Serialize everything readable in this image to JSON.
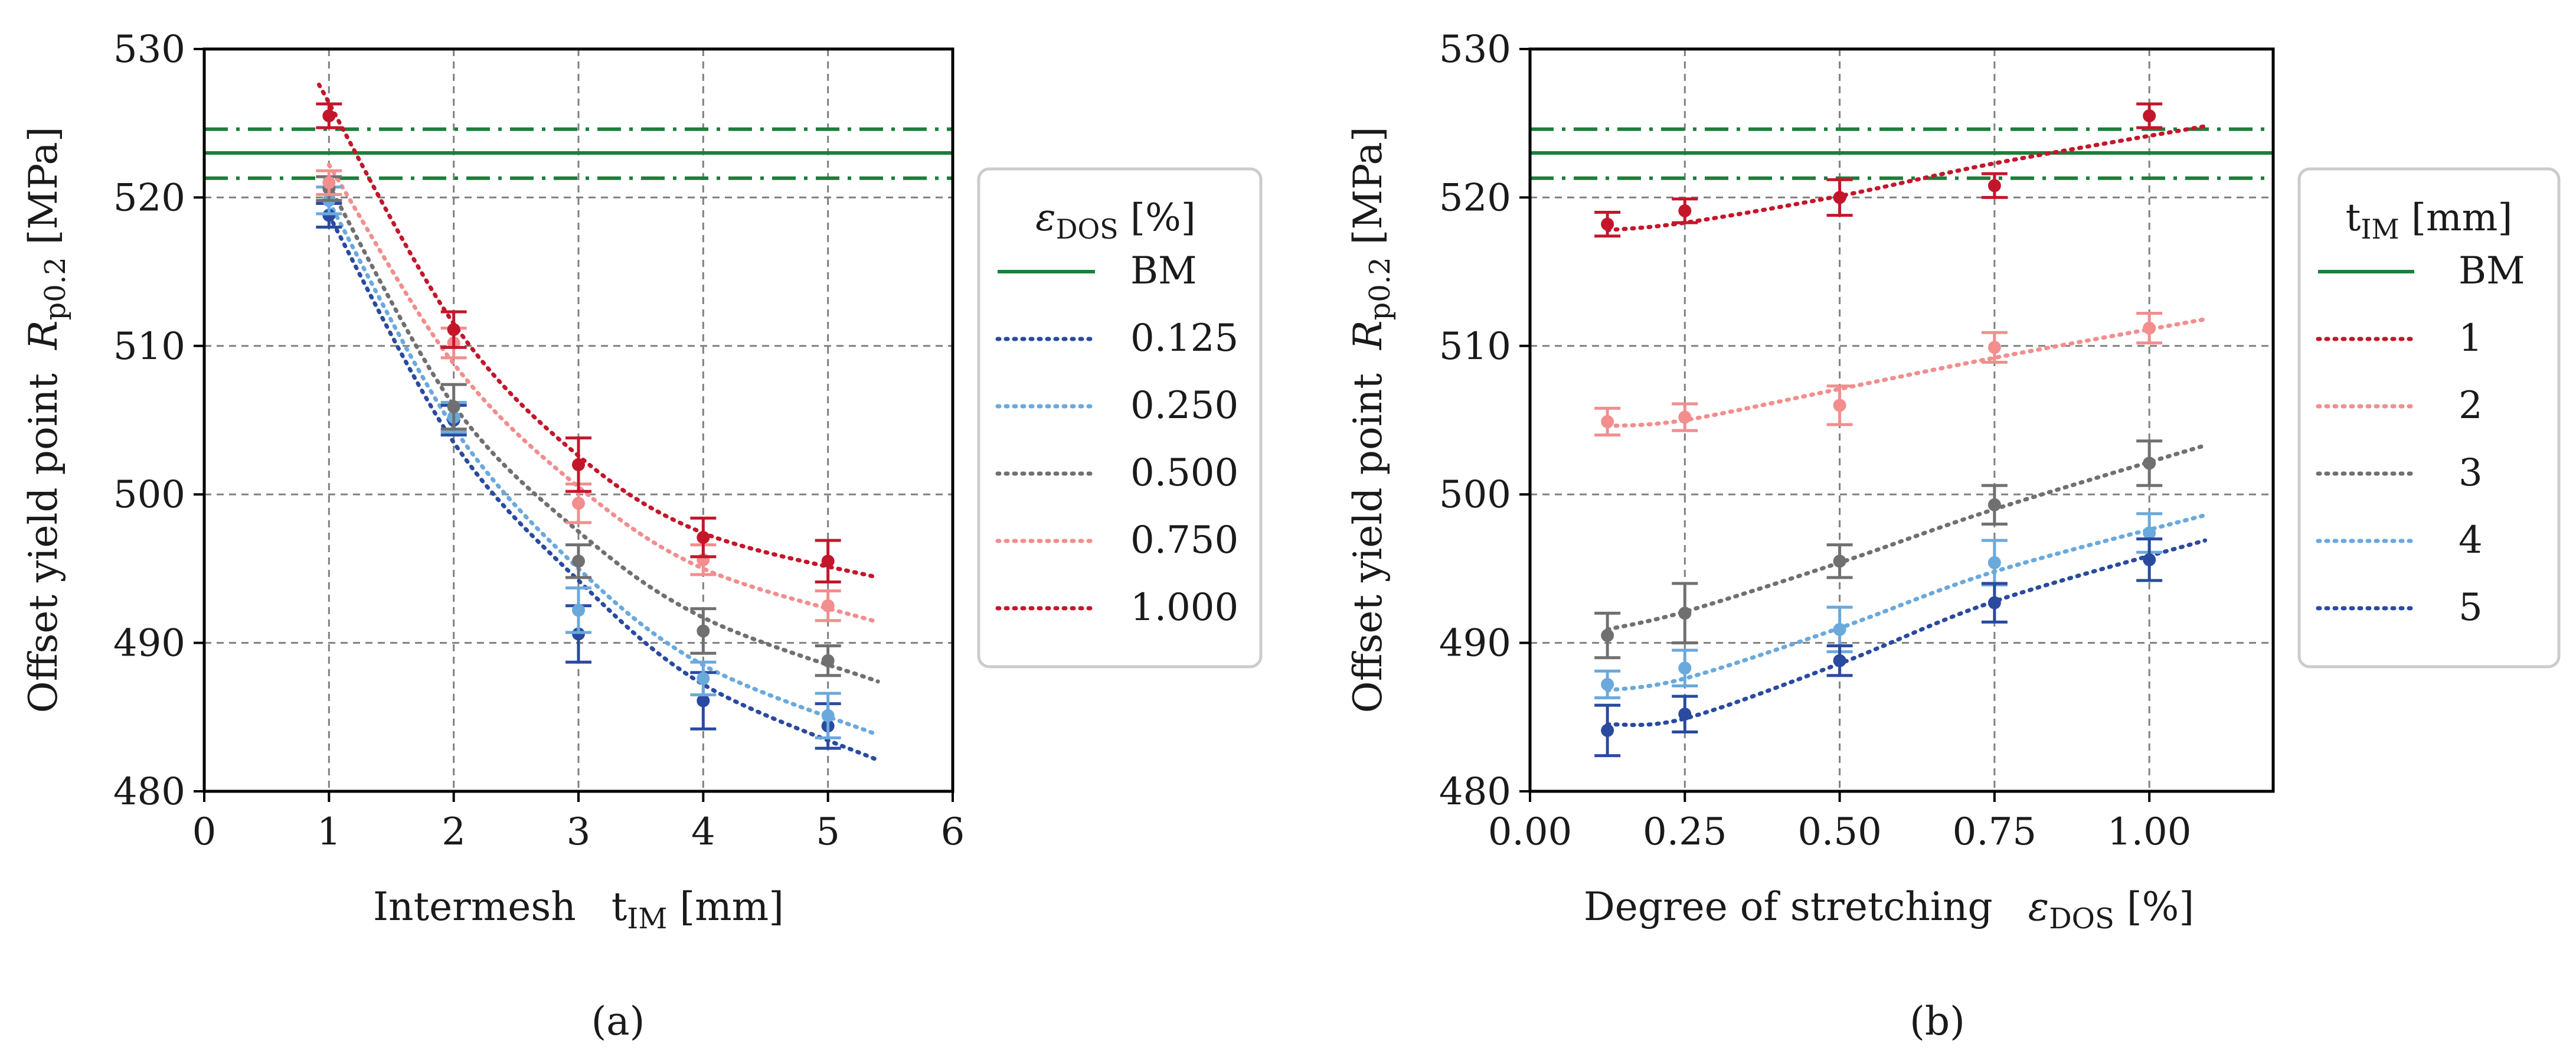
{
  "colors": {
    "bm": "#1b7f3b",
    "dark_blue": "#2a4aa0",
    "light_blue": "#6aa9dc",
    "gray": "#707070",
    "pink": "#f28e8e",
    "red": "#c4162a",
    "grid": "#808080"
  },
  "chart_data": [
    {
      "type": "scatter",
      "panel_label": "(a)",
      "title": "",
      "xlabel_main": "Intermesh",
      "xlabel_sym": "t",
      "xlabel_sub": "IM",
      "xlabel_unit": " [mm]",
      "ylabel_main": "Offset yield point",
      "ylabel_sym": "R",
      "ylabel_sub": "p0.2",
      "ylabel_unit": " [MPa]",
      "xlim": [
        0,
        6
      ],
      "ylim": [
        480,
        530
      ],
      "xticks": [
        0,
        1,
        2,
        3,
        4,
        5,
        6
      ],
      "xtick_labels": [
        "0",
        "1",
        "2",
        "3",
        "4",
        "5",
        "6"
      ],
      "yticks": [
        480,
        490,
        500,
        510,
        520,
        530
      ],
      "ytick_labels": [
        "480",
        "490",
        "500",
        "510",
        "520",
        "530"
      ],
      "grid": true,
      "legend_title_sym": "ε",
      "legend_title_sub": "DOS",
      "legend_title_unit": " [%]",
      "legend_placement": "outside-right",
      "reference": {
        "name": "BM",
        "value": 523.0,
        "band": [
          521.3,
          524.6
        ]
      },
      "series": [
        {
          "name": "0.125",
          "color_key": "dark_blue",
          "x": [
            1,
            2,
            3,
            4,
            5
          ],
          "y": [
            518.8,
            505.0,
            490.6,
            486.1,
            484.4
          ],
          "err": [
            0.8,
            1.0,
            1.9,
            1.9,
            1.5
          ],
          "fit_x": [
            1,
            2,
            3,
            4,
            5.4
          ],
          "fit_y": [
            518.8,
            503.5,
            494.2,
            487.2,
            482.1
          ]
        },
        {
          "name": "0.250",
          "color_key": "light_blue",
          "x": [
            1,
            2,
            3,
            4,
            5
          ],
          "y": [
            519.8,
            505.2,
            492.2,
            487.6,
            485.1
          ],
          "err": [
            0.9,
            1.0,
            1.5,
            1.1,
            1.5
          ],
          "fit_x": [
            1,
            2,
            3,
            4,
            5.4
          ],
          "fit_y": [
            519.7,
            504.5,
            495.0,
            488.5,
            483.8
          ]
        },
        {
          "name": "0.500",
          "color_key": "gray",
          "x": [
            1,
            2,
            3,
            4,
            5
          ],
          "y": [
            520.6,
            505.9,
            495.5,
            490.8,
            488.8
          ],
          "err": [
            0.8,
            1.5,
            1.1,
            1.5,
            1.0
          ],
          "fit_x": [
            1,
            2,
            3,
            4,
            5.4
          ],
          "fit_y": [
            520.8,
            506.0,
            497.5,
            491.7,
            487.4
          ]
        },
        {
          "name": "0.750",
          "color_key": "pink",
          "x": [
            1,
            2,
            3,
            4,
            5
          ],
          "y": [
            521.0,
            510.2,
            499.4,
            495.6,
            492.5
          ],
          "err": [
            0.8,
            1.0,
            1.3,
            1.0,
            1.0
          ],
          "fit_x": [
            1,
            2,
            3,
            4,
            5.4
          ],
          "fit_y": [
            522.2,
            508.8,
            500.5,
            495.0,
            491.4
          ]
        },
        {
          "name": "1.000",
          "color_key": "red",
          "x": [
            1,
            2,
            3,
            4,
            5
          ],
          "y": [
            525.5,
            511.1,
            502.0,
            497.1,
            495.5
          ],
          "err": [
            0.8,
            1.2,
            1.8,
            1.3,
            1.4
          ],
          "fit_x": [
            0.92,
            2,
            3,
            4,
            5.4
          ],
          "fit_y": [
            527.6,
            511.5,
            502.6,
            497.4,
            494.4
          ]
        }
      ]
    },
    {
      "type": "scatter",
      "panel_label": "(b)",
      "title": "",
      "xlabel_main": "Degree of stretching",
      "xlabel_sym": "ε",
      "xlabel_sub": "DOS",
      "xlabel_unit": " [%]",
      "ylabel_main": "Offset yield point",
      "ylabel_sym": "R",
      "ylabel_sub": "p0.2",
      "ylabel_unit": " [MPa]",
      "xlim": [
        0,
        1.2
      ],
      "ylim": [
        480,
        530
      ],
      "xticks": [
        0,
        0.25,
        0.5,
        0.75,
        1.0
      ],
      "xtick_labels": [
        "0.00",
        "0.25",
        "0.50",
        "0.75",
        "1.00"
      ],
      "yticks": [
        480,
        490,
        500,
        510,
        520,
        530
      ],
      "ytick_labels": [
        "480",
        "490",
        "500",
        "510",
        "520",
        "530"
      ],
      "grid": true,
      "legend_title_sym": "t",
      "legend_title_sub": "IM",
      "legend_title_unit": " [mm]",
      "legend_placement": "outside-right",
      "reference": {
        "name": "BM",
        "value": 523.0,
        "band": [
          521.3,
          524.6
        ]
      },
      "series": [
        {
          "name": "1",
          "color_key": "red",
          "x": [
            0.125,
            0.25,
            0.5,
            0.75,
            1.0
          ],
          "y": [
            518.2,
            519.1,
            520.0,
            520.8,
            525.5
          ],
          "err": [
            0.8,
            0.8,
            1.2,
            0.8,
            0.8
          ],
          "fit_x": [
            0.125,
            0.25,
            0.5,
            0.75,
            1.09
          ],
          "fit_y": [
            517.8,
            518.3,
            520.1,
            522.3,
            524.8
          ]
        },
        {
          "name": "2",
          "color_key": "pink",
          "x": [
            0.125,
            0.25,
            0.5,
            0.75,
            1.0
          ],
          "y": [
            504.9,
            505.2,
            506.0,
            509.9,
            511.2
          ],
          "err": [
            0.9,
            0.9,
            1.3,
            1.0,
            1.0
          ],
          "fit_x": [
            0.125,
            0.25,
            0.5,
            0.75,
            1.09
          ],
          "fit_y": [
            504.6,
            505.0,
            507.1,
            509.2,
            511.8
          ]
        },
        {
          "name": "3",
          "color_key": "gray",
          "x": [
            0.125,
            0.25,
            0.5,
            0.75,
            1.0
          ],
          "y": [
            490.5,
            492.0,
            495.5,
            499.3,
            502.1
          ],
          "err": [
            1.5,
            2.0,
            1.1,
            1.3,
            1.5
          ],
          "fit_x": [
            0.125,
            0.25,
            0.5,
            0.75,
            1.09
          ],
          "fit_y": [
            490.9,
            492.1,
            495.4,
            499.0,
            503.3
          ]
        },
        {
          "name": "4",
          "color_key": "light_blue",
          "x": [
            0.125,
            0.25,
            0.5,
            0.75,
            1.0
          ],
          "y": [
            487.2,
            488.3,
            490.9,
            495.4,
            497.4
          ],
          "err": [
            0.9,
            1.2,
            1.5,
            1.5,
            1.3
          ],
          "fit_x": [
            0.125,
            0.25,
            0.5,
            0.75,
            1.09
          ],
          "fit_y": [
            486.8,
            487.6,
            491.0,
            494.8,
            498.6
          ]
        },
        {
          "name": "5",
          "color_key": "dark_blue",
          "x": [
            0.125,
            0.25,
            0.5,
            0.75,
            1.0
          ],
          "y": [
            484.1,
            485.2,
            488.8,
            492.7,
            495.6
          ],
          "err": [
            1.7,
            1.2,
            1.0,
            1.3,
            1.4
          ],
          "fit_x": [
            0.125,
            0.25,
            0.5,
            0.75,
            1.09
          ],
          "fit_y": [
            484.5,
            484.9,
            488.6,
            492.8,
            496.9
          ]
        }
      ]
    }
  ]
}
